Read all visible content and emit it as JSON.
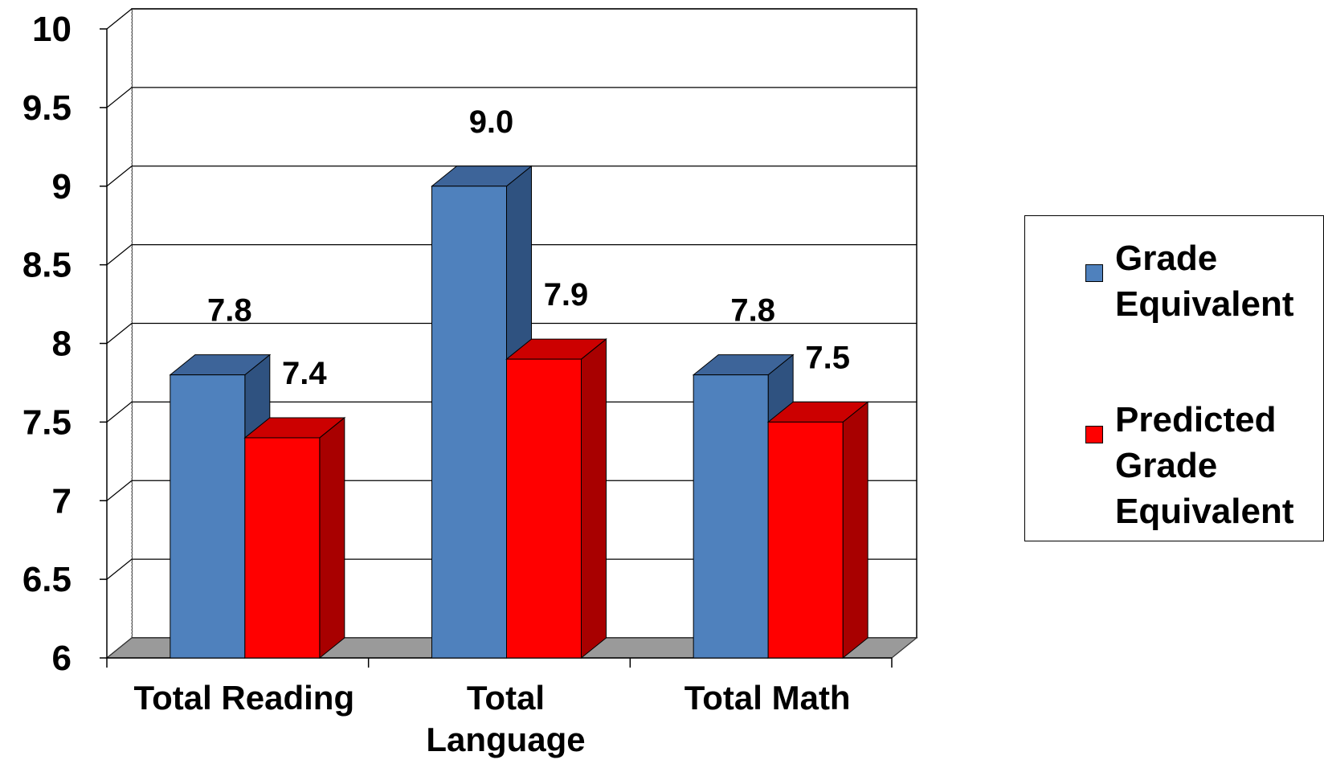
{
  "chart_data": {
    "type": "bar",
    "categories": [
      "Total Reading",
      "Total\nLanguage",
      "Total Math"
    ],
    "series": [
      {
        "name": "Grade Equivalent",
        "values": [
          7.8,
          9.0,
          7.8
        ],
        "labels": [
          "7.8",
          "9.0",
          "7.8"
        ],
        "color": "#4f81bd"
      },
      {
        "name": "Predicted Grade Equivalent",
        "values": [
          7.4,
          7.9,
          7.5
        ],
        "labels": [
          "7.4",
          "7.9",
          "7.5"
        ],
        "color": "#ff0000"
      }
    ],
    "ylim": [
      6,
      10
    ],
    "yticks": [
      "6",
      "6.5",
      "7",
      "7.5",
      "8",
      "8.5",
      "9",
      "9.5",
      "10"
    ],
    "grid": true,
    "three_d": true,
    "legend_position": "right"
  },
  "legend": {
    "items": [
      {
        "label": "Grade\nEquivalent",
        "color": "#4f81bd"
      },
      {
        "label": "Predicted\nGrade\nEquivalent",
        "color": "#ff0000"
      }
    ]
  }
}
